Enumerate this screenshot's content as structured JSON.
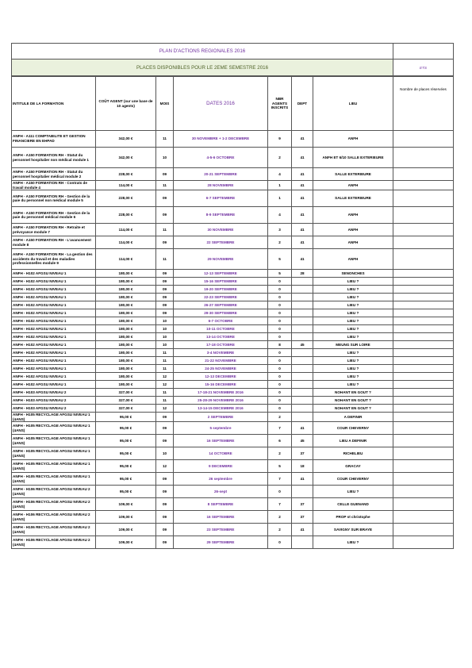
{
  "header": {
    "title": "PLAN D'ACTIONS REGIONALES 2016",
    "subtitle": "PLACES DISPONIBLES POUR LE 2EME SEMESTRE 2016",
    "ets": "ETS"
  },
  "columns": {
    "name": "INTITULE DE LA FORMATION",
    "cost": "COÛT AGENT (sur une base de 10 agents)",
    "mois": "MOIS",
    "dates": "DATES 2016",
    "nbr": "NBR AGENTS INSCRITS",
    "dept": "DEPT",
    "lieu": "LIEU",
    "reserved": "Nombre de places réservées"
  },
  "rows": [
    {
      "name": "ANFH - A111 COMPTABILITE ET GESTION FINANCIERE EN EHPAD",
      "cost": "342,00 €",
      "mois": "11",
      "dates": "30 NOVEMBRE + 1-2 DECEMBRE",
      "nbr": "9",
      "dept": "41",
      "lieu": "ANFH"
    },
    {
      "name": "ANFH - A150 FORMATION RH - Statut du personnel hospitalier non médical module 1",
      "cost": "342,00 €",
      "mois": "10",
      "dates": "4-5-6 OCTOBRE",
      "nbr": "2",
      "dept": "41",
      "lieu": "ANFH ET 6/10 SALLE EXTERIEURE"
    },
    {
      "name": "ANFH - A150 FORMATION RH - Statut du personnel hospitalier médical module 2",
      "cost": "228,00 €",
      "mois": "09",
      "dates": "20-21 SEPTEMBRE",
      "nbr": "4",
      "dept": "41",
      "lieu": "SALLE EXTERIEURE"
    },
    {
      "name": "ANFH - A150 FORMATION RH - Contrats de travail module 4",
      "cost": "114,00 €",
      "mois": "11",
      "dates": "28 NOVEMBRE",
      "nbr": "1",
      "dept": "41",
      "lieu": "ANFH"
    },
    {
      "name": "ANFH - A150 FORMATION RH - Gestion de la paie du personnel non médical module 5",
      "cost": "228,00 €",
      "mois": "09",
      "dates": "6-7 SEPTEMBRE",
      "nbr": "1",
      "dept": "41",
      "lieu": "SALLE EXTERIEURE"
    },
    {
      "name": "ANFH - A150 FORMATION RH - Gestion de la paie du personnel médical module 6",
      "cost": "228,00 €",
      "mois": "09",
      "dates": "8-9 SEPTEMBRE",
      "nbr": "4",
      "dept": "41",
      "lieu": "ANFH"
    },
    {
      "name": "ANFH - A150 FORMATION RH - Retraite et prévoyance module 7",
      "cost": "114,00 €",
      "mois": "11",
      "dates": "30 NOVEMBRE",
      "nbr": "3",
      "dept": "41",
      "lieu": "ANFH"
    },
    {
      "name": "ANFH - A150 FORMATION RH - L'avancement module 8",
      "cost": "114,00 €",
      "mois": "09",
      "dates": "22 SEPTEMBRE",
      "nbr": "2",
      "dept": "41",
      "lieu": "ANFH"
    },
    {
      "name": "ANFH - A150 FORMATION RH - La gestion des accidents du travail et des maladies professionnelles module 9",
      "cost": "114,00 €",
      "mois": "11",
      "dates": "29 NOVEMBRE",
      "nbr": "5",
      "dept": "41",
      "lieu": "ANFH"
    },
    {
      "name": "ANFH - H102 AFGSU NIVEAU 1",
      "cost": "180,00 €",
      "mois": "09",
      "dates": "12-13 SEPTEMBRE",
      "nbr": "5",
      "dept": "28",
      "lieu": "SENONCHES"
    },
    {
      "name": "ANFH - H102 AFGSU NIVEAU 1",
      "cost": "180,00 €",
      "mois": "09",
      "dates": "15-16 SEPTEMBRE",
      "nbr": "0",
      "dept": "",
      "lieu": "LIEU ?"
    },
    {
      "name": "ANFH - H102 AFGSU NIVEAU 1",
      "cost": "180,00 €",
      "mois": "09",
      "dates": "19-20 SEPTEMBRE",
      "nbr": "0",
      "dept": "",
      "lieu": "LIEU ?"
    },
    {
      "name": "ANFH - H102 AFGSU NIVEAU 1",
      "cost": "180,00 €",
      "mois": "09",
      "dates": "22-23 SEPTEMBRE",
      "nbr": "0",
      "dept": "",
      "lieu": "LIEU ?"
    },
    {
      "name": "ANFH - H102 AFGSU NIVEAU 1",
      "cost": "180,00 €",
      "mois": "09",
      "dates": "26-27 SEPTEMBRE",
      "nbr": "0",
      "dept": "",
      "lieu": "LIEU ?"
    },
    {
      "name": "ANFH - H102 AFGSU NIVEAU 1",
      "cost": "180,00 €",
      "mois": "09",
      "dates": "29-30 SEPTEMBRE",
      "nbr": "0",
      "dept": "",
      "lieu": "LIEU ?"
    },
    {
      "name": "ANFH - H102 AFGSU NIVEAU 1",
      "cost": "180,00 €",
      "mois": "10",
      "dates": "6-7 OCTOBRE",
      "nbr": "0",
      "dept": "",
      "lieu": "LIEU ?"
    },
    {
      "name": "ANFH - H102 AFGSU NIVEAU 1",
      "cost": "180,00 €",
      "mois": "10",
      "dates": "10-11 OCTOBRE",
      "nbr": "0",
      "dept": "",
      "lieu": "LIEU ?"
    },
    {
      "name": "ANFH - H102 AFGSU NIVEAU 1",
      "cost": "180,00 €",
      "mois": "10",
      "dates": "13-14 OCTOBRE",
      "nbr": "0",
      "dept": "",
      "lieu": "LIEU ?"
    },
    {
      "name": "ANFH - H102 AFGSU NIVEAU 1",
      "cost": "180,00 €",
      "mois": "10",
      "dates": "17-18 OCTOBRE",
      "nbr": "8",
      "dept": "45",
      "lieu": "MEUNG SUR LOIRE"
    },
    {
      "name": "ANFH - H102 AFGSU NIVEAU 1",
      "cost": "180,00 €",
      "mois": "11",
      "dates": "3-4 NOVEMBRE",
      "nbr": "0",
      "dept": "",
      "lieu": "LIEU ?"
    },
    {
      "name": "ANFH - H102 AFGSU NIVEAU 1",
      "cost": "180,00 €",
      "mois": "11",
      "dates": "21-22 NOVEMBRE",
      "nbr": "0",
      "dept": "",
      "lieu": "LIEU ?"
    },
    {
      "name": "ANFH - H102 AFGSU NIVEAU 1",
      "cost": "180,00 €",
      "mois": "11",
      "dates": "24-25 NOVEMBRE",
      "nbr": "0",
      "dept": "",
      "lieu": "LIEU ?"
    },
    {
      "name": "ANFH - H102 AFGSU NIVEAU 1",
      "cost": "180,00 €",
      "mois": "12",
      "dates": "12-13 DECEMBRE",
      "nbr": "0",
      "dept": "",
      "lieu": "LIEU ?"
    },
    {
      "name": "ANFH - H102 AFGSU NIVEAU 1",
      "cost": "180,00 €",
      "mois": "12",
      "dates": "15-16 DECEMBRE",
      "nbr": "0",
      "dept": "",
      "lieu": "LIEU ?"
    },
    {
      "name": "ANFH - H103 AFGSU NIVEAU 2",
      "cost": "327,00 €",
      "mois": "11",
      "dates": "17-18-21 NOVEMBRE 2016",
      "nbr": "0",
      "dept": "",
      "lieu": "NOHANT EN GOUT ?"
    },
    {
      "name": "ANFH - H103 AFGSU NIVEAU 2",
      "cost": "327,00 €",
      "mois": "11",
      "dates": "25-28-29 NOVEMBRE 2016",
      "nbr": "0",
      "dept": "",
      "lieu": "NOHANT EN GOUT ?"
    },
    {
      "name": "ANFH - H103 AFGSU NIVEAU 2",
      "cost": "327,00 €",
      "mois": "12",
      "dates": "13-14-15 DECEMBRE 2016",
      "nbr": "0",
      "dept": "",
      "lieu": "NOHANT EN GOUT ?"
    },
    {
      "name": "ANFH - H105 RECYCLAGE AFGSU NIVEAU 1 (4ANS)",
      "cost": "95,00 €",
      "mois": "09",
      "dates": "2 SEPTEMBRE",
      "nbr": "2",
      "dept": "",
      "lieu": "A DEFINIR"
    },
    {
      "name": "ANFH - H105 RECYCLAGE AFGSU NIVEAU 1 (4ANS)",
      "cost": "95,00 €",
      "mois": "09",
      "dates": "5 septembre",
      "nbr": "7",
      "dept": "41",
      "lieu": "COUR CHEVERNY"
    },
    {
      "name": "ANFH - H105 RECYCLAGE AFGSU NIVEAU 1 (4ANS)",
      "cost": "95,00 €",
      "mois": "09",
      "dates": "16 SEPTEMBRE",
      "nbr": "6",
      "dept": "45",
      "lieu": "LIEU A DEFINIR"
    },
    {
      "name": "ANFH - H105 RECYCLAGE AFGSU NIVEAU 1 (4ANS)",
      "cost": "95,00 €",
      "mois": "10",
      "dates": "14 OCTOBRE",
      "nbr": "2",
      "dept": "37",
      "lieu": "RICHELIEU"
    },
    {
      "name": "ANFH - H105 RECYCLAGE AFGSU NIVEAU 1 (4ANS)",
      "cost": "95,00 €",
      "mois": "12",
      "dates": "9 DECEMBRE",
      "nbr": "5",
      "dept": "18",
      "lieu": "GRACAY"
    },
    {
      "name": "ANFH - H105 RECYCLAGE AFGSU NIVEAU 1 (4ANS)",
      "cost": "95,00 €",
      "mois": "09",
      "dates": "26 septembre",
      "nbr": "7",
      "dept": "41",
      "lieu": "COUR CHEVERNY"
    },
    {
      "name": "ANFH - H106 RECYCLAGE AFGSU NIVEAU 2 (4ANS)",
      "cost": "95,00 €",
      "mois": "09",
      "dates": "26-sept",
      "nbr": "0",
      "dept": "",
      "lieu": "LIEU ?"
    },
    {
      "name": "ANFH - H106 RECYCLAGE AFGSU NIVEAU 2 (4ANS)",
      "cost": "109,00 €",
      "mois": "09",
      "dates": "8 SEPTEMBRE",
      "nbr": "7",
      "dept": "37",
      "lieu": "CELLE GUENAND"
    },
    {
      "name": "ANFH - H106 RECYCLAGE AFGSU NIVEAU 2 (4ANS)",
      "cost": "109,00 €",
      "mois": "09",
      "dates": "16 SEPTEMBRE",
      "nbr": "2",
      "dept": "37",
      "lieu": "PROP st christophe"
    },
    {
      "name": "ANFH - H106 RECYCLAGE AFGSU NIVEAU 2 (4ANS)",
      "cost": "109,00 €",
      "mois": "09",
      "dates": "23 SEPTEMBRE",
      "nbr": "2",
      "dept": "41",
      "lieu": "SAVIGNY SUR BRAYE"
    },
    {
      "name": "ANFH - H106 RECYCLAGE AFGSU NIVEAU 2 (4ANS)",
      "cost": "109,00 €",
      "mois": "09",
      "dates": "29 SEPTEMBRE",
      "nbr": "0",
      "dept": "",
      "lieu": "LIEU ?"
    }
  ]
}
